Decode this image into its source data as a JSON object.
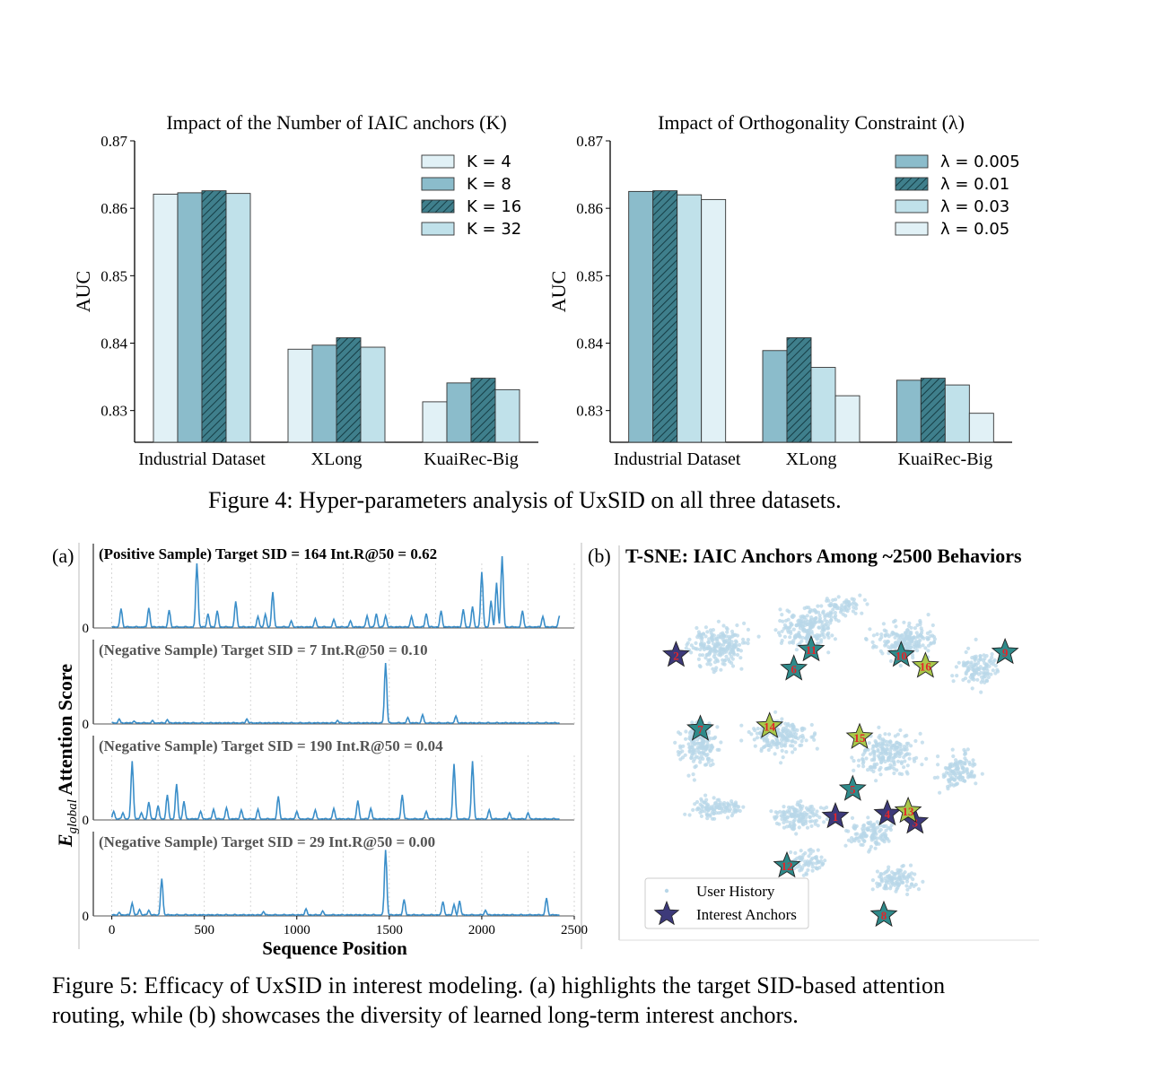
{
  "figure4": {
    "caption": "Figure 4: Hyper-parameters analysis of UxSID on all three datasets."
  },
  "figure5": {
    "caption_line1": "Figure 5: Efficacy of UxSID in interest modeling. (a) highlights the target SID-based attention",
    "caption_line2": "routing, while (b) showcases the diversity of learned long-term interest anchors.",
    "panel_a_label": "(a)",
    "panel_b_label": "(b)",
    "panel_b_title": "T-SNE: IAIC Anchors Among ~2500 Behaviors",
    "ylabel_main": "E",
    "ylabel_sub": "global",
    "ylabel_rest": " Attention Score",
    "xlabel": "Sequence Position",
    "legend_history": "User History",
    "legend_anchors": "Interest Anchors"
  },
  "chart_data": [
    {
      "type": "bar",
      "title": "Impact of the Number of IAIC anchors (K)",
      "ylabel": "AUC",
      "ylim": [
        0.8253,
        0.87
      ],
      "yticks": [
        "0.83",
        "0.84",
        "0.85",
        "0.86",
        "0.87"
      ],
      "categories": [
        "Industrial Dataset",
        "XLong",
        "KuaiRec-Big"
      ],
      "legend_position": "top-right",
      "series": [
        {
          "name": "K = 4",
          "values": [
            0.8621,
            0.8391,
            0.8313
          ],
          "color": "#e1f1f6",
          "hatch": false
        },
        {
          "name": "K = 8",
          "values": [
            0.8623,
            0.8397,
            0.8341
          ],
          "color": "#8bbccb",
          "hatch": false
        },
        {
          "name": "K = 16",
          "values": [
            0.8626,
            0.8408,
            0.8348
          ],
          "color": "#3f7f8c",
          "hatch": true
        },
        {
          "name": "K = 32",
          "values": [
            0.8622,
            0.8394,
            0.8331
          ],
          "color": "#c0e1ea",
          "hatch": false
        }
      ]
    },
    {
      "type": "bar",
      "title": "Impact of Orthogonality Constraint (λ)",
      "ylabel": "AUC",
      "ylim": [
        0.8253,
        0.87
      ],
      "yticks": [
        "0.83",
        "0.84",
        "0.85",
        "0.86",
        "0.87"
      ],
      "categories": [
        "Industrial Dataset",
        "XLong",
        "KuaiRec-Big"
      ],
      "legend_position": "top-right",
      "series": [
        {
          "name": "λ = 0.005",
          "values": [
            0.8625,
            0.8389,
            0.8345
          ],
          "color": "#8bbccb",
          "hatch": false
        },
        {
          "name": "λ = 0.01",
          "values": [
            0.8626,
            0.8408,
            0.8348
          ],
          "color": "#3f7f8c",
          "hatch": true
        },
        {
          "name": "λ = 0.03",
          "values": [
            0.862,
            0.8364,
            0.8338
          ],
          "color": "#c0e1ea",
          "hatch": false
        },
        {
          "name": "λ = 0.05",
          "values": [
            0.8613,
            0.8322,
            0.8296
          ],
          "color": "#e1f1f6",
          "hatch": false
        }
      ]
    },
    {
      "type": "line",
      "xlabel": "Sequence Position",
      "xlim": [
        -100,
        2500
      ],
      "xticks": [
        0,
        500,
        1000,
        1500,
        2000,
        2500
      ],
      "grid": "vertical dotted",
      "color": "#3a8ec9",
      "panels": [
        {
          "title": "(Positive Sample) Target SID = 164   Int.R@50 = 0.62",
          "title_color": "#000000",
          "ytick": "0",
          "peaks": [
            [
              50,
              0.27
            ],
            [
              200,
              0.28
            ],
            [
              310,
              0.25
            ],
            [
              460,
              0.9
            ],
            [
              520,
              0.2
            ],
            [
              570,
              0.24
            ],
            [
              670,
              0.37
            ],
            [
              790,
              0.16
            ],
            [
              830,
              0.19
            ],
            [
              870,
              0.5
            ],
            [
              970,
              0.1
            ],
            [
              1100,
              0.13
            ],
            [
              1200,
              0.12
            ],
            [
              1290,
              0.1
            ],
            [
              1380,
              0.17
            ],
            [
              1430,
              0.2
            ],
            [
              1480,
              0.17
            ],
            [
              1620,
              0.16
            ],
            [
              1700,
              0.2
            ],
            [
              1780,
              0.24
            ],
            [
              1900,
              0.26
            ],
            [
              1950,
              0.3
            ],
            [
              2000,
              0.78
            ],
            [
              2050,
              0.38
            ],
            [
              2080,
              0.63
            ],
            [
              2110,
              1.0
            ],
            [
              2220,
              0.24
            ],
            [
              2330,
              0.16
            ],
            [
              2420,
              0.17
            ]
          ]
        },
        {
          "title": "(Negative Sample) Target SID = 7   Int.R@50 = 0.10",
          "title_color": "#555555",
          "ytick": "0",
          "peaks": [
            [
              40,
              0.07
            ],
            [
              120,
              0.04
            ],
            [
              220,
              0.05
            ],
            [
              300,
              0.06
            ],
            [
              730,
              0.07
            ],
            [
              1220,
              0.05
            ],
            [
              1480,
              0.85
            ],
            [
              1600,
              0.09
            ],
            [
              1680,
              0.13
            ],
            [
              1860,
              0.11
            ]
          ]
        },
        {
          "title": "(Negative Sample) Target SID = 190   Int.R@50 = 0.04",
          "title_color": "#555555",
          "ytick": "0",
          "peaks": [
            [
              10,
              0.12
            ],
            [
              60,
              0.1
            ],
            [
              110,
              0.82
            ],
            [
              160,
              0.1
            ],
            [
              200,
              0.25
            ],
            [
              250,
              0.2
            ],
            [
              300,
              0.35
            ],
            [
              350,
              0.5
            ],
            [
              390,
              0.26
            ],
            [
              480,
              0.12
            ],
            [
              550,
              0.15
            ],
            [
              620,
              0.17
            ],
            [
              700,
              0.14
            ],
            [
              790,
              0.15
            ],
            [
              900,
              0.33
            ],
            [
              1000,
              0.12
            ],
            [
              1100,
              0.14
            ],
            [
              1200,
              0.16
            ],
            [
              1330,
              0.27
            ],
            [
              1400,
              0.16
            ],
            [
              1570,
              0.35
            ],
            [
              1700,
              0.12
            ],
            [
              1850,
              0.78
            ],
            [
              1950,
              0.82
            ],
            [
              2040,
              0.14
            ],
            [
              2150,
              0.1
            ],
            [
              2250,
              0.1
            ]
          ]
        },
        {
          "title": "(Negative Sample) Target SID = 29   Int.R@50 = 0.00",
          "title_color": "#555555",
          "ytick": "0",
          "peaks": [
            [
              40,
              0.05
            ],
            [
              110,
              0.18
            ],
            [
              150,
              0.09
            ],
            [
              200,
              0.08
            ],
            [
              270,
              0.52
            ],
            [
              820,
              0.06
            ],
            [
              1050,
              0.1
            ],
            [
              1140,
              0.07
            ],
            [
              1480,
              0.92
            ],
            [
              1580,
              0.23
            ],
            [
              1790,
              0.2
            ],
            [
              1850,
              0.16
            ],
            [
              1880,
              0.21
            ],
            [
              2020,
              0.08
            ],
            [
              2350,
              0.25
            ]
          ]
        }
      ]
    },
    {
      "type": "scatter",
      "title": "T-SNE: IAIC Anchors Among ~2500 Behaviors",
      "legend_position": "bottom-left",
      "point_color": "#b8d7e8",
      "anchor_colors": {
        "navy": "#3d3a7a",
        "teal": "#2f8a8a",
        "lime": "#a9c84a",
        "label": "#e2252a"
      },
      "anchors": [
        {
          "id": "1",
          "x": 0.5,
          "y": 0.36,
          "color": "navy"
        },
        {
          "id": "2",
          "x": 0.04,
          "y": 0.95,
          "color": "navy"
        },
        {
          "id": "3",
          "x": 0.73,
          "y": 0.34,
          "color": "navy"
        },
        {
          "id": "4",
          "x": 0.65,
          "y": 0.37,
          "color": "navy"
        },
        {
          "id": "5",
          "x": 0.55,
          "y": 0.46,
          "color": "teal"
        },
        {
          "id": "6",
          "x": 0.38,
          "y": 0.9,
          "color": "teal"
        },
        {
          "id": "7",
          "x": 0.11,
          "y": 0.68,
          "color": "teal"
        },
        {
          "id": "8",
          "x": 0.64,
          "y": 0.0,
          "color": "teal"
        },
        {
          "id": "9",
          "x": 0.99,
          "y": 0.96,
          "color": "teal"
        },
        {
          "id": "10",
          "x": 0.69,
          "y": 0.95,
          "color": "teal"
        },
        {
          "id": "11",
          "x": 0.43,
          "y": 0.97,
          "color": "teal"
        },
        {
          "id": "12",
          "x": 0.36,
          "y": 0.18,
          "color": "teal"
        },
        {
          "id": "13",
          "x": 0.71,
          "y": 0.38,
          "color": "lime"
        },
        {
          "id": "14",
          "x": 0.31,
          "y": 0.69,
          "color": "lime"
        },
        {
          "id": "15",
          "x": 0.57,
          "y": 0.65,
          "color": "lime"
        },
        {
          "id": "16",
          "x": 0.76,
          "y": 0.91,
          "color": "lime"
        }
      ]
    }
  ]
}
